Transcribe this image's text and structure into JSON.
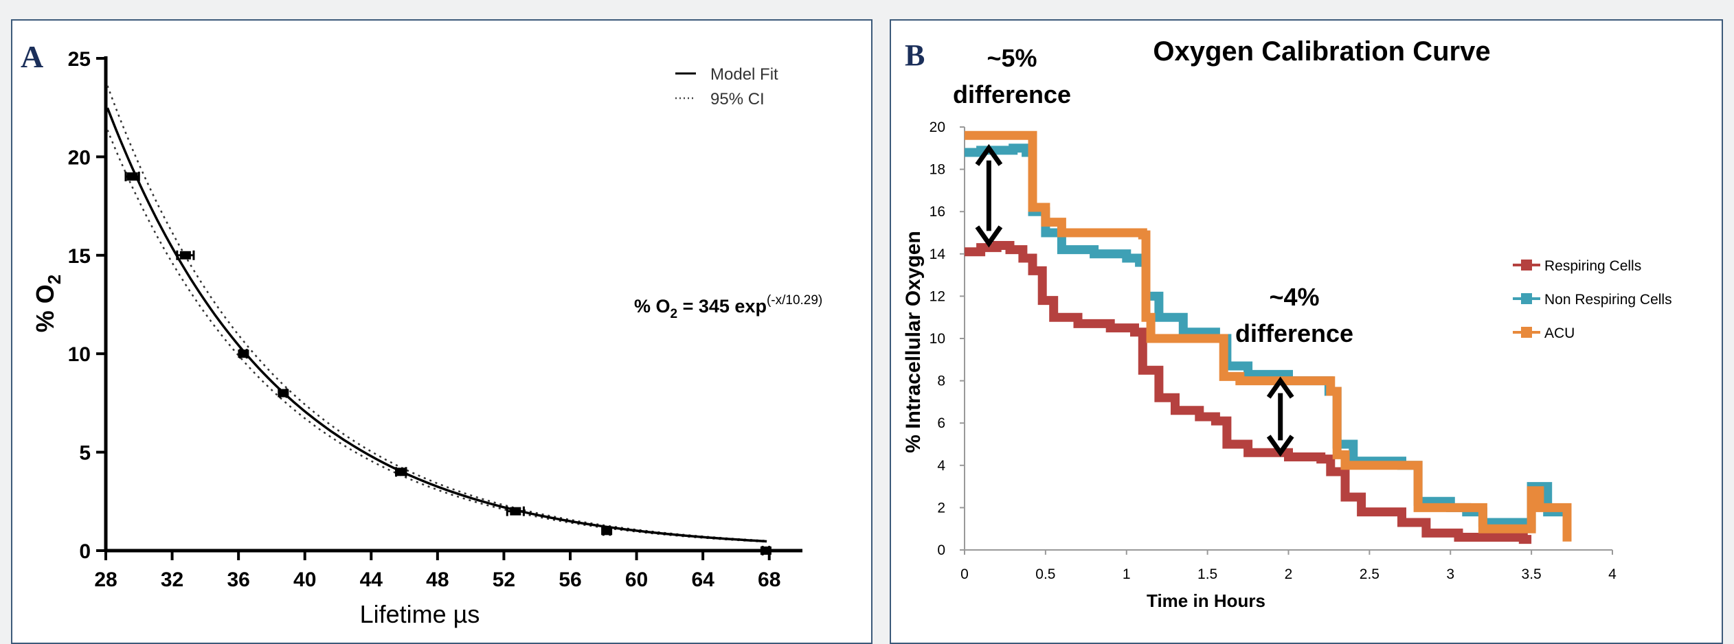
{
  "chart_data": [
    {
      "type": "scatter",
      "panel_label": "A",
      "xlabel": "Lifetime µs",
      "ylabel": "% O",
      "ylabel_sub": "2",
      "xlim": [
        28,
        70
      ],
      "ylim": [
        0,
        25
      ],
      "xticks": [
        28,
        32,
        36,
        40,
        44,
        48,
        52,
        56,
        60,
        64,
        68
      ],
      "yticks": [
        0,
        5,
        10,
        15,
        20,
        25
      ],
      "grid": false,
      "legend_position": "top-right",
      "legend": [
        {
          "label": "Model Fit",
          "style": "solid"
        },
        {
          "label": "95% CI",
          "style": "dotted"
        }
      ],
      "equation": {
        "prefix": "% O",
        "sub": "2",
        "mid": " = 345 exp",
        "sup": "(-x/10.29)"
      },
      "fit": {
        "amplitude": 345,
        "tau": 10.29
      },
      "ci_factors": [
        0.95,
        1.05
      ],
      "points": [
        {
          "x": 29.6,
          "y": 19,
          "xerr": 0.4
        },
        {
          "x": 32.8,
          "y": 15,
          "xerr": 0.5
        },
        {
          "x": 36.3,
          "y": 10,
          "xerr": 0.2
        },
        {
          "x": 38.7,
          "y": 8,
          "xerr": 0.2
        },
        {
          "x": 45.8,
          "y": 4,
          "xerr": 0.3
        },
        {
          "x": 52.7,
          "y": 2,
          "xerr": 0.5
        },
        {
          "x": 58.2,
          "y": 1,
          "xerr": 0.2
        },
        {
          "x": 67.8,
          "y": 0,
          "xerr": 0.2
        }
      ]
    },
    {
      "type": "line",
      "panel_label": "B",
      "title": "Oxygen Calibration Curve",
      "xlabel": "Time in Hours",
      "ylabel": "% Intracellular Oxygen",
      "xlim": [
        0,
        4
      ],
      "ylim": [
        0,
        20
      ],
      "xticks": [
        "0",
        "0.5",
        "1",
        "1.5",
        "2",
        "2.5",
        "3",
        "3.5",
        "4"
      ],
      "yticks": [
        0,
        2,
        4,
        6,
        8,
        10,
        12,
        14,
        16,
        18,
        20
      ],
      "grid": false,
      "legend_position": "right",
      "series": [
        {
          "name": "Respiring Cells",
          "color": "#b5413f",
          "points": [
            [
              0,
              14.1
            ],
            [
              0.1,
              14.3
            ],
            [
              0.2,
              14.4
            ],
            [
              0.28,
              14.2
            ],
            [
              0.36,
              13.8
            ],
            [
              0.42,
              13.2
            ],
            [
              0.48,
              11.8
            ],
            [
              0.55,
              11.0
            ],
            [
              0.7,
              10.7
            ],
            [
              0.9,
              10.5
            ],
            [
              1.05,
              10.3
            ],
            [
              1.1,
              8.5
            ],
            [
              1.2,
              7.2
            ],
            [
              1.3,
              6.6
            ],
            [
              1.45,
              6.3
            ],
            [
              1.55,
              6.1
            ],
            [
              1.62,
              5.0
            ],
            [
              1.75,
              4.6
            ],
            [
              2.0,
              4.4
            ],
            [
              2.2,
              4.3
            ],
            [
              2.26,
              3.7
            ],
            [
              2.35,
              2.5
            ],
            [
              2.45,
              1.8
            ],
            [
              2.7,
              1.3
            ],
            [
              2.85,
              0.8
            ],
            [
              3.05,
              0.6
            ],
            [
              3.45,
              0.5
            ],
            [
              3.5,
              0.5
            ]
          ]
        },
        {
          "name": "Non Respiring Cells",
          "color": "#3ea0b5",
          "points": [
            [
              0,
              18.8
            ],
            [
              0.1,
              18.9
            ],
            [
              0.3,
              19.0
            ],
            [
              0.38,
              18.8
            ],
            [
              0.42,
              16.0
            ],
            [
              0.5,
              15.0
            ],
            [
              0.6,
              14.2
            ],
            [
              0.8,
              14.0
            ],
            [
              1.0,
              13.8
            ],
            [
              1.08,
              13.6
            ],
            [
              1.12,
              12.0
            ],
            [
              1.2,
              11.0
            ],
            [
              1.35,
              10.3
            ],
            [
              1.55,
              10.0
            ],
            [
              1.62,
              8.7
            ],
            [
              1.75,
              8.3
            ],
            [
              2.0,
              8.0
            ],
            [
              2.15,
              8.0
            ],
            [
              2.25,
              7.5
            ],
            [
              2.3,
              5.0
            ],
            [
              2.4,
              4.2
            ],
            [
              2.7,
              4.0
            ],
            [
              2.8,
              2.3
            ],
            [
              3.0,
              2.0
            ],
            [
              3.1,
              1.8
            ],
            [
              3.2,
              1.3
            ],
            [
              3.45,
              1.1
            ],
            [
              3.5,
              3.0
            ],
            [
              3.6,
              1.8
            ],
            [
              3.72,
              0.8
            ]
          ]
        },
        {
          "name": "ACU",
          "color": "#e8893b",
          "points": [
            [
              0,
              19.6
            ],
            [
              0.1,
              19.6
            ],
            [
              0.4,
              19.6
            ],
            [
              0.42,
              16.2
            ],
            [
              0.5,
              15.5
            ],
            [
              0.6,
              15.0
            ],
            [
              1.1,
              14.9
            ],
            [
              1.12,
              11.0
            ],
            [
              1.15,
              10.0
            ],
            [
              1.35,
              10.0
            ],
            [
              1.58,
              10.0
            ],
            [
              1.6,
              8.2
            ],
            [
              1.7,
              8.0
            ],
            [
              2.2,
              8.0
            ],
            [
              2.26,
              7.5
            ],
            [
              2.3,
              4.5
            ],
            [
              2.35,
              4.0
            ],
            [
              2.75,
              4.0
            ],
            [
              2.8,
              2.0
            ],
            [
              3.15,
              2.0
            ],
            [
              3.2,
              1.0
            ],
            [
              3.45,
              1.0
            ],
            [
              3.5,
              2.8
            ],
            [
              3.55,
              2.0
            ],
            [
              3.72,
              0.4
            ]
          ]
        }
      ],
      "annotations": [
        {
          "lines": [
            "~5%",
            "difference"
          ],
          "arrow_x": 0.15,
          "arrow_y1": 14.5,
          "arrow_y2": 19.0
        },
        {
          "lines": [
            "~4%",
            "difference"
          ],
          "arrow_x": 1.95,
          "arrow_y1": 4.6,
          "arrow_y2": 8.0
        }
      ]
    }
  ]
}
